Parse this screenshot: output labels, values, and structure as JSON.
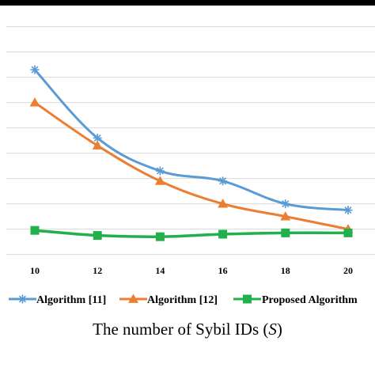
{
  "chart_data": {
    "type": "line",
    "xlabel": "The number of Sybil IDs (",
    "xlabel_var": "S",
    "xlabel_end": ")",
    "x": [
      10,
      12,
      14,
      16,
      18,
      20
    ],
    "ylim": [
      0,
      9
    ],
    "grid": true,
    "legend_position": "bottom",
    "series": [
      {
        "name": "Algorithm [11]",
        "color": "#5b9bd5",
        "marker": "star",
        "values": [
          7.3,
          4.6,
          3.3,
          2.9,
          2.0,
          1.75
        ]
      },
      {
        "name": "Algorithm [12]",
        "color": "#ed7d31",
        "marker": "triangle",
        "values": [
          6.0,
          4.3,
          2.9,
          2.0,
          1.5,
          1.0
        ]
      },
      {
        "name": "Proposed Algorithm",
        "color": "#22b04c",
        "marker": "square",
        "values": [
          0.95,
          0.75,
          0.7,
          0.8,
          0.85,
          0.85
        ]
      }
    ]
  }
}
